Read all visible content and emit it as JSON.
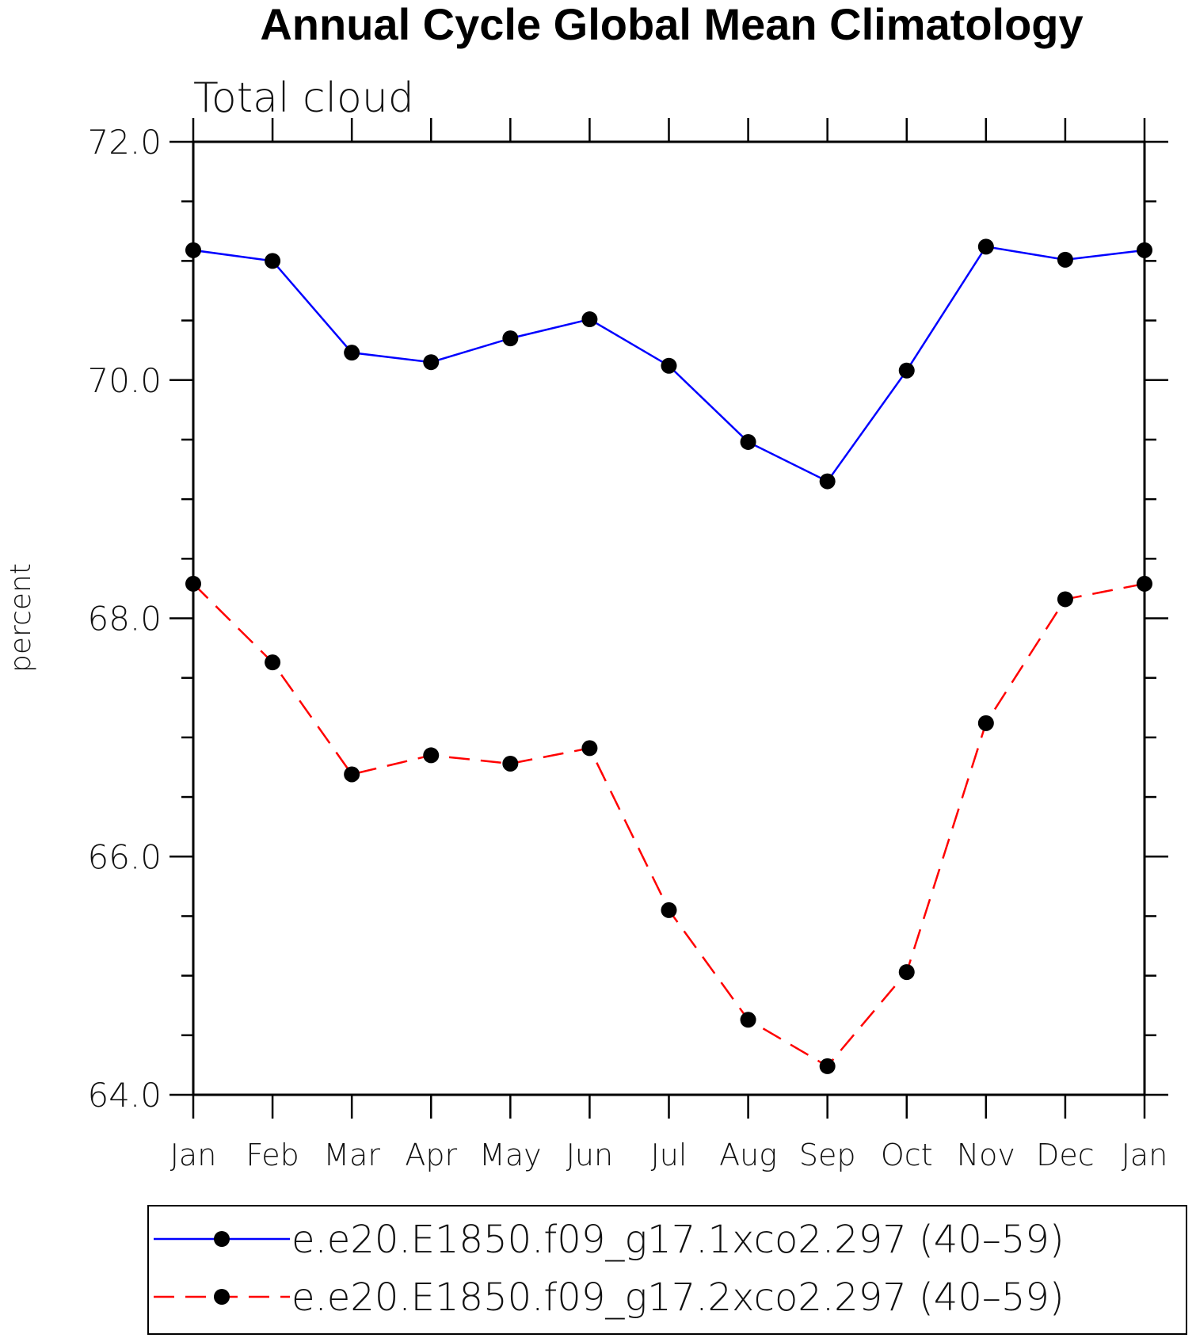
{
  "chart_data": {
    "type": "line",
    "title": "Annual Cycle Global Mean Climatology",
    "subtitle": "Total cloud",
    "xlabel": "",
    "ylabel": "percent",
    "categories": [
      "Jan",
      "Feb",
      "Mar",
      "Apr",
      "May",
      "Jun",
      "Jul",
      "Aug",
      "Sep",
      "Oct",
      "Nov",
      "Dec",
      "Jan"
    ],
    "ylim": [
      64.0,
      72.0
    ],
    "y_ticks": [
      "64.0",
      "66.0",
      "68.0",
      "70.0",
      "72.0"
    ],
    "y_minor_step": 0.5,
    "grid": false,
    "legend_position": "bottom",
    "series": [
      {
        "name": "e.e20.E1850.f09_g17.1xco2.297 (40–59)",
        "color": "#0000ff",
        "style": "solid",
        "marker": "filled-circle",
        "values": [
          71.09,
          71.0,
          70.23,
          70.15,
          70.35,
          70.51,
          70.12,
          69.48,
          69.15,
          70.08,
          71.12,
          71.01,
          71.09
        ]
      },
      {
        "name": "e.e20.E1850.f09_g17.2xco2.297 (40–59)",
        "color": "#ff0000",
        "style": "dashed",
        "marker": "filled-circle",
        "values": [
          68.29,
          67.63,
          66.69,
          66.85,
          66.78,
          66.91,
          65.55,
          64.63,
          64.24,
          65.03,
          67.12,
          68.16,
          68.29
        ]
      }
    ]
  }
}
